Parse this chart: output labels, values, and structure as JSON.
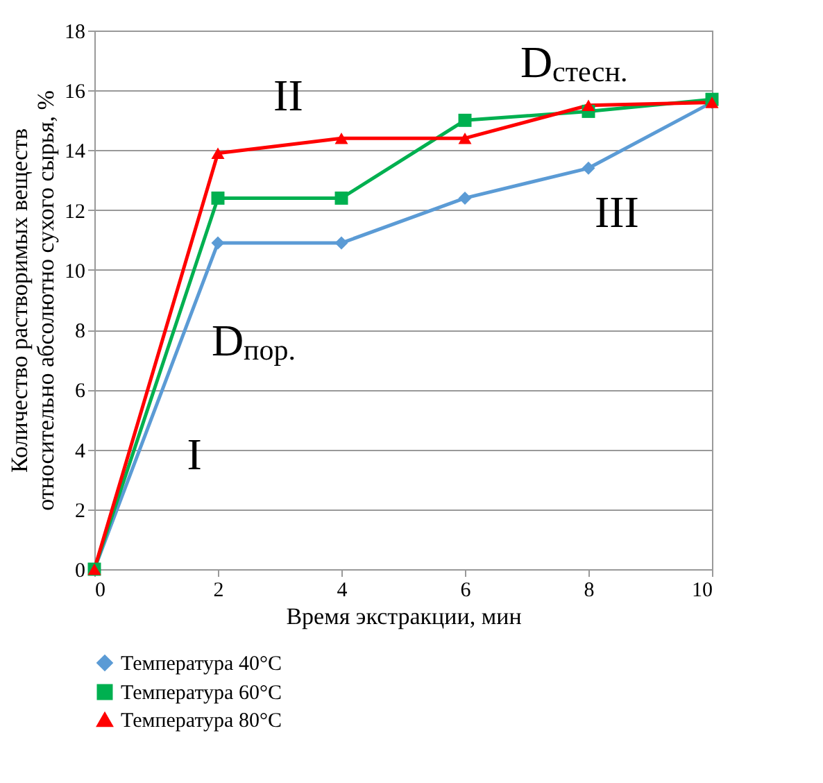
{
  "chart_data": {
    "type": "line",
    "x": [
      0,
      2,
      4,
      6,
      8,
      10
    ],
    "series": [
      {
        "name": "Температура 40°C",
        "color": "#5b9bd5",
        "marker": "diamond",
        "values": [
          0,
          10.9,
          10.9,
          12.4,
          13.4,
          15.6
        ]
      },
      {
        "name": "Температура 60°C",
        "color": "#00b050",
        "marker": "square",
        "values": [
          0,
          12.4,
          12.4,
          15.0,
          15.3,
          15.7
        ]
      },
      {
        "name": "Температура 80°C",
        "color": "#ff0000",
        "marker": "triangle",
        "values": [
          0,
          13.9,
          14.4,
          14.4,
          15.5,
          15.6
        ]
      }
    ],
    "xlabel": "Время экстракции, мин",
    "ylabel": "Количество растворимых веществ\nотносительно абсолютно сухого сырья, %",
    "xlim": [
      0,
      10
    ],
    "xticks": [
      0,
      2,
      4,
      6,
      8,
      10
    ],
    "ylim": [
      0,
      18
    ],
    "yticks": [
      0,
      2,
      4,
      6,
      8,
      10,
      12,
      14,
      16,
      18
    ],
    "annotations": [
      "I",
      "II",
      "III",
      "D$_{пор.}$",
      "D$_{стесн.}$"
    ],
    "grid": "y",
    "legend": "bottom",
    "line_style": "solid"
  }
}
